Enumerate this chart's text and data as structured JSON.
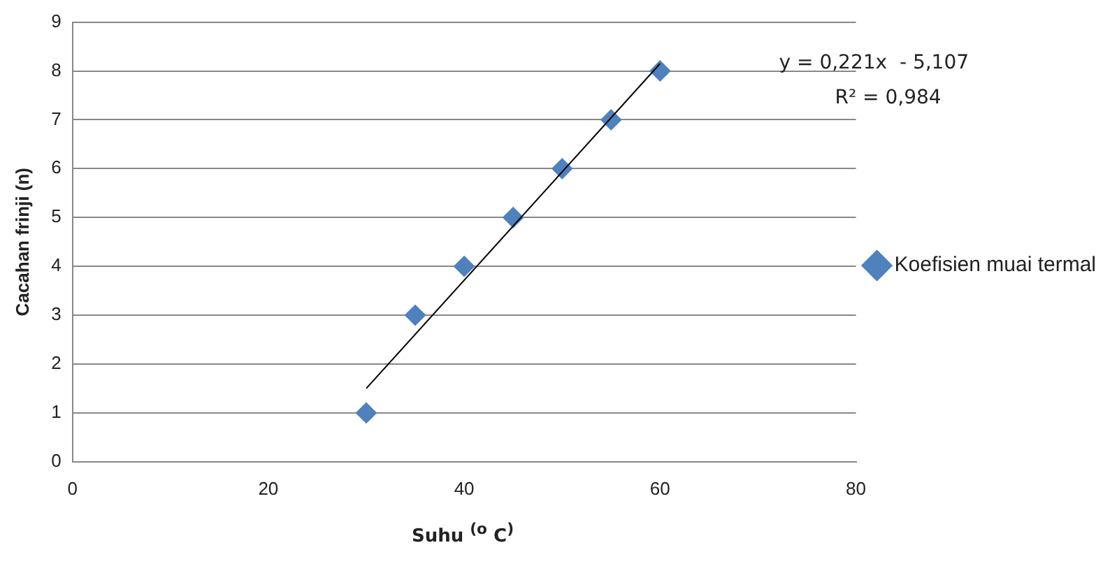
{
  "chart_data": {
    "type": "scatter",
    "xlabel": "Suhu $^{(o}$ C$^{)}$",
    "ylabel": "Cacahan frinji (n)",
    "x": [
      30,
      35,
      40,
      45,
      50,
      55,
      60
    ],
    "series": [
      {
        "name": "Koefisien muai termal",
        "color": "#4f81bd",
        "values": [
          1,
          3,
          4,
          5,
          6,
          7,
          8
        ],
        "marker": "diamond"
      },
      {
        "type": "line",
        "color": "#000000",
        "x": [
          30,
          60
        ],
        "values": [
          1.5,
          8.15
        ],
        "marker": "none"
      }
    ],
    "xlim": [
      0,
      80
    ],
    "xticks": [
      0,
      20,
      40,
      60,
      80
    ],
    "ylim": [
      0,
      9
    ],
    "yticks": [
      0,
      1,
      2,
      3,
      4,
      5,
      6,
      7,
      8,
      9
    ],
    "grid": "y",
    "legend": "right",
    "annotations": [
      "y = 0,221x  - 5,107",
      "R² = 0,984"
    ]
  }
}
